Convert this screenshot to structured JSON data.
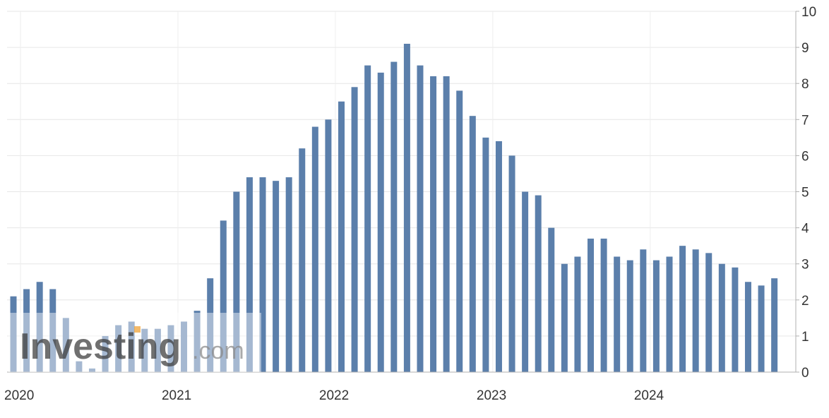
{
  "chart_data": {
    "type": "bar",
    "title": "",
    "xlabel": "",
    "ylabel": "",
    "ylim": [
      0,
      10
    ],
    "y_ticks": [
      "0",
      "1",
      "2",
      "3",
      "4",
      "5",
      "6",
      "7",
      "8",
      "9",
      "10"
    ],
    "y_axis_position": "right",
    "x_tick_labels": [
      "2020",
      "2021",
      "2022",
      "2023",
      "2024"
    ],
    "grid": true,
    "bar_color": "#5b7fab",
    "x": [
      "2020-01",
      "2020-02",
      "2020-03",
      "2020-04",
      "2020-05",
      "2020-06",
      "2020-07",
      "2020-08",
      "2020-09",
      "2020-10",
      "2020-11",
      "2020-12",
      "2021-01",
      "2021-02",
      "2021-03",
      "2021-04",
      "2021-05",
      "2021-06",
      "2021-07",
      "2021-08",
      "2021-09",
      "2021-10",
      "2021-11",
      "2021-12",
      "2022-01",
      "2022-02",
      "2022-03",
      "2022-04",
      "2022-05",
      "2022-06",
      "2022-07",
      "2022-08",
      "2022-09",
      "2022-10",
      "2022-11",
      "2022-12",
      "2023-01",
      "2023-02",
      "2023-03",
      "2023-04",
      "2023-05",
      "2023-06",
      "2023-07",
      "2023-08",
      "2023-09",
      "2023-10",
      "2023-11",
      "2023-12",
      "2024-01",
      "2024-02",
      "2024-03",
      "2024-04",
      "2024-05",
      "2024-06",
      "2024-07",
      "2024-08",
      "2024-09",
      "2024-10",
      "2024-11"
    ],
    "values": [
      2.1,
      2.3,
      2.5,
      2.3,
      1.5,
      0.3,
      0.1,
      1.0,
      1.3,
      1.4,
      1.2,
      1.2,
      1.3,
      1.4,
      1.7,
      2.6,
      4.2,
      5.0,
      5.4,
      5.4,
      5.3,
      5.4,
      6.2,
      6.8,
      7.0,
      7.5,
      7.9,
      8.5,
      8.3,
      8.6,
      9.1,
      8.5,
      8.2,
      8.2,
      7.8,
      7.1,
      6.5,
      6.4,
      6.0,
      5.0,
      4.9,
      4.0,
      3.0,
      3.2,
      3.7,
      3.7,
      3.2,
      3.1,
      3.4,
      3.1,
      3.2,
      3.5,
      3.4,
      3.3,
      3.0,
      2.9,
      2.5,
      2.4,
      2.6
    ]
  },
  "watermark": {
    "brand": "Investing",
    "suffix": ".com"
  }
}
